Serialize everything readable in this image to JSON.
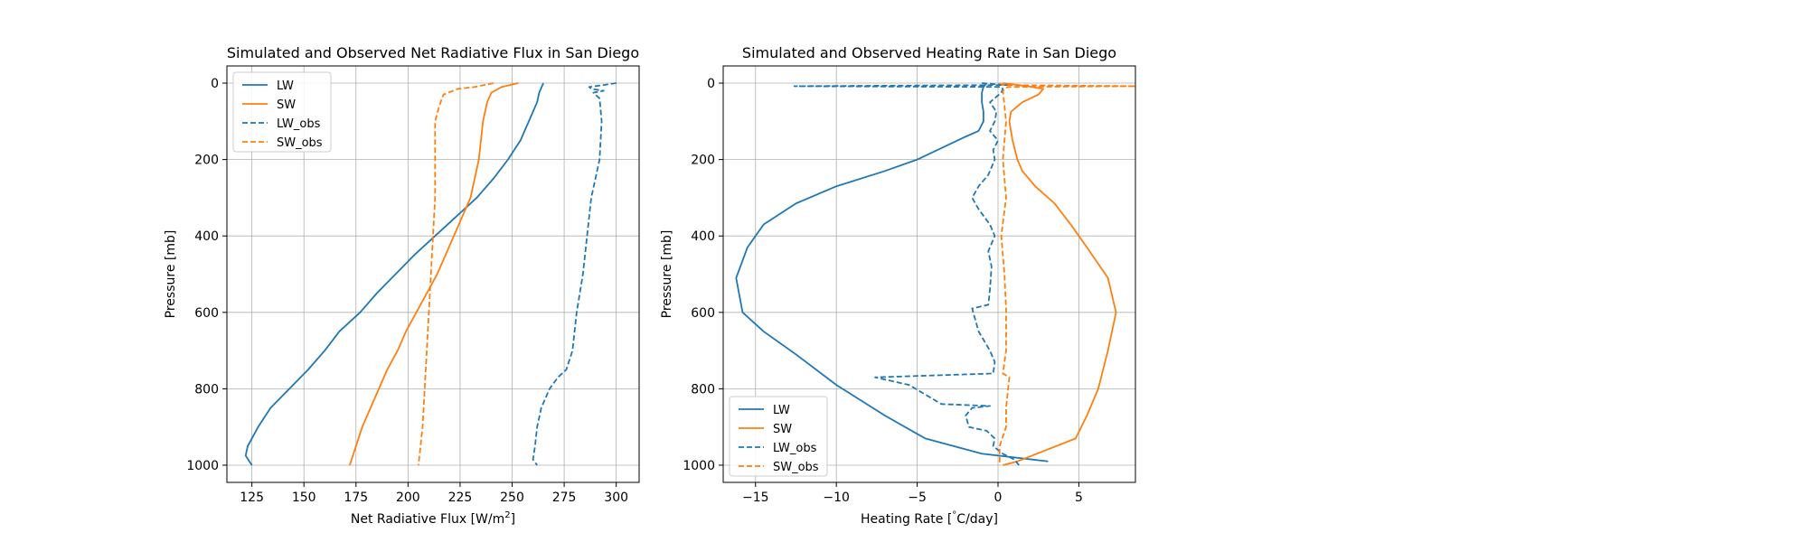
{
  "chart_data": [
    {
      "type": "line",
      "title": "Simulated and Observed Net Radiative Flux in San Diego",
      "xlabel": "Net Radiative Flux [W/m",
      "xlabel_sup": "2",
      "xlabel_end": "]",
      "ylabel": "Pressure [mb]",
      "xlim": [
        113,
        311
      ],
      "ylim": [
        1045,
        -45
      ],
      "y_inverted": true,
      "xticks": [
        125,
        150,
        175,
        200,
        225,
        250,
        275,
        300
      ],
      "yticks": [
        0,
        200,
        400,
        600,
        800,
        1000
      ],
      "grid": true,
      "legend_position": "top-left",
      "series": [
        {
          "name": "LW",
          "color": "#1f77b4",
          "dash": "solid",
          "points": [
            [
              265,
              0
            ],
            [
              263,
              25
            ],
            [
              262,
              50
            ],
            [
              260,
              75
            ],
            [
              258,
              100
            ],
            [
              256,
              125
            ],
            [
              254,
              150
            ],
            [
              251,
              175
            ],
            [
              248,
              200
            ],
            [
              241,
              250
            ],
            [
              233,
              300
            ],
            [
              223,
              350
            ],
            [
              213,
              400
            ],
            [
              203,
              450
            ],
            [
              194,
              500
            ],
            [
              185,
              550
            ],
            [
              177,
              600
            ],
            [
              167,
              650
            ],
            [
              160,
              700
            ],
            [
              152,
              750
            ],
            [
              143,
              800
            ],
            [
              134,
              850
            ],
            [
              128,
              900
            ],
            [
              123,
              950
            ],
            [
              122,
              975
            ],
            [
              125,
              1000
            ]
          ]
        },
        {
          "name": "SW",
          "color": "#ff7f0e",
          "dash": "solid",
          "points": [
            [
              253,
              0
            ],
            [
              245,
              10
            ],
            [
              240,
              25
            ],
            [
              238,
              50
            ],
            [
              237,
              75
            ],
            [
              236,
              100
            ],
            [
              235,
              150
            ],
            [
              234,
              200
            ],
            [
              232,
              250
            ],
            [
              230,
              300
            ],
            [
              226,
              350
            ],
            [
              222,
              400
            ],
            [
              218,
              450
            ],
            [
              214,
              500
            ],
            [
              209,
              550
            ],
            [
              204,
              600
            ],
            [
              199,
              650
            ],
            [
              195,
              700
            ],
            [
              190,
              750
            ],
            [
              186,
              800
            ],
            [
              182,
              850
            ],
            [
              178,
              900
            ],
            [
              175,
              950
            ],
            [
              172,
              1000
            ]
          ]
        },
        {
          "name": "LW_obs",
          "color": "#1f77b4",
          "dash": "dashed",
          "points": [
            [
              300,
              0
            ],
            [
              290,
              8
            ],
            [
              287,
              10
            ],
            [
              288,
              15
            ],
            [
              294,
              20
            ],
            [
              289,
              25
            ],
            [
              292,
              40
            ],
            [
              293,
              100
            ],
            [
              292,
              200
            ],
            [
              290,
              250
            ],
            [
              288,
              300
            ],
            [
              286,
              400
            ],
            [
              284,
              500
            ],
            [
              281,
              600
            ],
            [
              279,
              700
            ],
            [
              276,
              750
            ],
            [
              272,
              770
            ],
            [
              268,
              800
            ],
            [
              264,
              850
            ],
            [
              262,
              900
            ],
            [
              261,
              950
            ],
            [
              260,
              985
            ],
            [
              262,
              1000
            ]
          ]
        },
        {
          "name": "SW_obs",
          "color": "#ff7f0e",
          "dash": "dashed",
          "points": [
            [
              241,
              0
            ],
            [
              232,
              10
            ],
            [
              224,
              15
            ],
            [
              217,
              30
            ],
            [
              215,
              60
            ],
            [
              213,
              100
            ],
            [
              213,
              200
            ],
            [
              213,
              300
            ],
            [
              212,
              400
            ],
            [
              211,
              500
            ],
            [
              210,
              600
            ],
            [
              209,
              700
            ],
            [
              208,
              800
            ],
            [
              207,
              900
            ],
            [
              206,
              950
            ],
            [
              205,
              1000
            ]
          ]
        }
      ]
    },
    {
      "type": "line",
      "title": "Simulated and Observed Heating Rate in San Diego",
      "xlabel": "Heating Rate [",
      "xlabel_sup": "°",
      "xlabel_end": "C/day]",
      "ylabel": "Pressure [mb]",
      "xlim": [
        -17,
        8.5
      ],
      "ylim": [
        1045,
        -45
      ],
      "y_inverted": true,
      "xticks": [
        -15,
        -10,
        -5,
        0,
        5
      ],
      "yticks": [
        0,
        200,
        400,
        600,
        800,
        1000
      ],
      "grid": true,
      "legend_position": "lower-left",
      "series": [
        {
          "name": "LW",
          "color": "#1f77b4",
          "dash": "solid",
          "points": [
            [
              -0.7,
              0
            ],
            [
              -0.9,
              10
            ],
            [
              -1,
              25
            ],
            [
              -1,
              50
            ],
            [
              -0.9,
              75
            ],
            [
              -0.9,
              100
            ],
            [
              -1.2,
              125
            ],
            [
              -2,
              140
            ],
            [
              -3.5,
              170
            ],
            [
              -5,
              200
            ],
            [
              -7,
              230
            ],
            [
              -10,
              270
            ],
            [
              -12.5,
              315
            ],
            [
              -14.5,
              370
            ],
            [
              -15.5,
              430
            ],
            [
              -16.2,
              510
            ],
            [
              -15.8,
              600
            ],
            [
              -14.5,
              650
            ],
            [
              -12.5,
              710
            ],
            [
              -10,
              790
            ],
            [
              -7,
              870
            ],
            [
              -4.5,
              930
            ],
            [
              -1,
              970
            ],
            [
              3.1,
              990
            ]
          ]
        },
        {
          "name": "SW",
          "color": "#ff7f0e",
          "dash": "solid",
          "points": [
            [
              0.3,
              0
            ],
            [
              1.8,
              8
            ],
            [
              2.8,
              15
            ],
            [
              2.5,
              30
            ],
            [
              1.5,
              50
            ],
            [
              0.8,
              75
            ],
            [
              0.7,
              100
            ],
            [
              0.9,
              150
            ],
            [
              1.2,
              200
            ],
            [
              1.5,
              230
            ],
            [
              2.3,
              270
            ],
            [
              3.5,
              315
            ],
            [
              4.5,
              370
            ],
            [
              5.5,
              430
            ],
            [
              6.8,
              510
            ],
            [
              7.3,
              600
            ],
            [
              6.8,
              700
            ],
            [
              6.2,
              800
            ],
            [
              5.5,
              870
            ],
            [
              4.8,
              930
            ],
            [
              3,
              960
            ],
            [
              1.2,
              990
            ],
            [
              0.3,
              1000
            ]
          ]
        },
        {
          "name": "LW_obs",
          "color": "#1f77b4",
          "dash": "dashed",
          "points": [
            [
              -1,
              0
            ],
            [
              0.6,
              5
            ],
            [
              -12.6,
              8
            ],
            [
              0.2,
              10
            ],
            [
              0.3,
              15
            ],
            [
              0.2,
              25
            ],
            [
              -0.5,
              50
            ],
            [
              -0.1,
              75
            ],
            [
              -0.2,
              100
            ],
            [
              -0.5,
              125
            ],
            [
              0,
              150
            ],
            [
              -0.3,
              175
            ],
            [
              -0.2,
              200
            ],
            [
              -0.6,
              240
            ],
            [
              -1.2,
              270
            ],
            [
              -1.6,
              300
            ],
            [
              -1.2,
              330
            ],
            [
              -0.5,
              370
            ],
            [
              -0.2,
              400
            ],
            [
              -0.6,
              440
            ],
            [
              -0.4,
              480
            ],
            [
              -0.5,
              540
            ],
            [
              -0.6,
              580
            ],
            [
              -1.6,
              590
            ],
            [
              -1.4,
              620
            ],
            [
              -1.2,
              650
            ],
            [
              -0.5,
              700
            ],
            [
              -0.2,
              730
            ],
            [
              -0.3,
              760
            ],
            [
              -7.6,
              770
            ],
            [
              -5.5,
              790
            ],
            [
              -3.5,
              840
            ],
            [
              -0.5,
              845
            ],
            [
              -1.6,
              850
            ],
            [
              -2,
              870
            ],
            [
              -1.8,
              900
            ],
            [
              -0.7,
              910
            ],
            [
              -0.2,
              930
            ],
            [
              -0.3,
              950
            ],
            [
              0.3,
              970
            ],
            [
              1,
              985
            ],
            [
              1.3,
              1000
            ]
          ]
        },
        {
          "name": "SW_obs",
          "color": "#ff7f0e",
          "dash": "dashed",
          "points": [
            [
              0.1,
              0
            ],
            [
              0.3,
              5
            ],
            [
              8.5,
              8
            ],
            [
              0.6,
              10
            ],
            [
              0.3,
              20
            ],
            [
              0.5,
              100
            ],
            [
              0.3,
              200
            ],
            [
              0.5,
              300
            ],
            [
              0.2,
              400
            ],
            [
              0.4,
              500
            ],
            [
              0.5,
              590
            ],
            [
              0.5,
              700
            ],
            [
              0.3,
              760
            ],
            [
              0.7,
              770
            ],
            [
              0.5,
              850
            ],
            [
              0.5,
              900
            ],
            [
              0.1,
              950
            ],
            [
              0.1,
              1000
            ]
          ]
        }
      ]
    }
  ]
}
